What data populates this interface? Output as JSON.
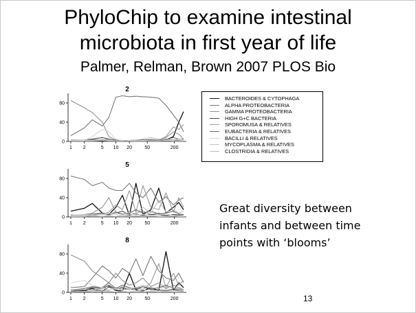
{
  "slide": {
    "title_lines": [
      "PhyloChip to examine intestinal",
      "microbiota in first year of life"
    ],
    "subtitle": "Palmer, Relman, Brown 2007 PLOS Bio",
    "comment_lines": [
      "Great diversity between",
      "infants and between time",
      "points with ‘blooms’"
    ],
    "page_number": "13"
  },
  "chart_data": [
    {
      "type": "line",
      "title": "2",
      "x": [
        1,
        2,
        3,
        5,
        7,
        10,
        14,
        20,
        28,
        40,
        60,
        90,
        130,
        190,
        250,
        320
      ],
      "xticks": [
        1,
        2,
        5,
        10,
        20,
        50,
        200
      ],
      "yticks": [
        0,
        40,
        80
      ],
      "xlog": true,
      "ylim": [
        0,
        100
      ],
      "series": [
        {
          "name": "BACTEROIDES & CYTOPHAGA",
          "values": [
            2,
            2,
            1,
            1,
            1,
            1,
            1,
            1,
            1,
            1,
            1,
            2,
            3,
            10,
            40,
            62
          ]
        },
        {
          "name": "ALPHA PROTEOBACTERIA",
          "values": [
            12,
            28,
            45,
            32,
            50,
            92,
            95,
            93,
            94,
            93,
            92,
            90,
            75,
            55,
            40,
            20
          ]
        },
        {
          "name": "GAMMA PROTEOBACTERIA",
          "values": [
            85,
            70,
            60,
            40,
            10,
            3,
            2,
            2,
            3,
            3,
            4,
            3,
            8,
            20,
            15,
            5
          ]
        },
        {
          "name": "HIGH G+C BACTERIA",
          "values": [
            2,
            3,
            5,
            8,
            5,
            2,
            1,
            1,
            2,
            3,
            2,
            3,
            5,
            3,
            2,
            1
          ]
        },
        {
          "name": "SPOROMUSA & RELATIVES",
          "values": [
            1,
            1,
            2,
            3,
            2,
            1,
            1,
            2,
            1,
            1,
            2,
            3,
            10,
            30,
            25,
            35
          ]
        },
        {
          "name": "EUBACTERIA & RELATIVES",
          "values": [
            3,
            2,
            4,
            3,
            5,
            2,
            2,
            1,
            2,
            2,
            3,
            2,
            4,
            8,
            5,
            4
          ]
        },
        {
          "name": "BACILLI & RELATIVES",
          "values": [
            1,
            2,
            10,
            25,
            20,
            5,
            2,
            1,
            1,
            2,
            1,
            1,
            2,
            1,
            1,
            1
          ]
        },
        {
          "name": "MYCOPLASMA & RELATIVES",
          "values": [
            1,
            1,
            1,
            2,
            1,
            1,
            1,
            2,
            1,
            1,
            1,
            1,
            2,
            1,
            1,
            1
          ]
        },
        {
          "name": "CLOSTRIDIA & RELATIVES",
          "values": [
            2,
            3,
            2,
            4,
            3,
            1,
            2,
            2,
            3,
            5,
            8,
            5,
            4,
            3,
            5,
            3
          ]
        }
      ]
    },
    {
      "type": "line",
      "title": "5",
      "x": [
        1,
        2,
        3,
        5,
        7,
        10,
        14,
        20,
        28,
        40,
        60,
        90,
        130,
        190,
        250,
        320
      ],
      "xticks": [
        1,
        2,
        5,
        10,
        20,
        50,
        200
      ],
      "yticks": [
        0,
        40,
        80
      ],
      "xlog": true,
      "ylim": [
        0,
        100
      ],
      "series": [
        {
          "name": "BACTEROIDES & CYTOPHAGA",
          "values": [
            12,
            18,
            28,
            8,
            5,
            20,
            45,
            3,
            70,
            5,
            15,
            60,
            8,
            20,
            30,
            15
          ]
        },
        {
          "name": "ALPHA PROTEOBACTERIA",
          "values": [
            85,
            78,
            65,
            72,
            60,
            55,
            55,
            70,
            50,
            40,
            60,
            30,
            42,
            25,
            35,
            40
          ]
        },
        {
          "name": "GAMMA PROTEOBACTERIA",
          "values": [
            3,
            5,
            8,
            20,
            40,
            10,
            5,
            3,
            8,
            12,
            5,
            8,
            3,
            5,
            2,
            4
          ]
        },
        {
          "name": "HIGH G+C BACTERIA",
          "values": [
            2,
            3,
            5,
            6,
            4,
            8,
            12,
            4,
            6,
            3,
            5,
            4,
            3,
            5,
            4,
            3
          ]
        },
        {
          "name": "SPOROMUSA & RELATIVES",
          "values": [
            1,
            2,
            3,
            5,
            10,
            25,
            15,
            55,
            10,
            65,
            20,
            15,
            50,
            10,
            40,
            20
          ]
        },
        {
          "name": "EUBACTERIA & RELATIVES",
          "values": [
            4,
            3,
            6,
            8,
            5,
            10,
            6,
            8,
            15,
            8,
            12,
            6,
            8,
            12,
            6,
            5
          ]
        },
        {
          "name": "BACILLI & RELATIVES",
          "values": [
            2,
            3,
            5,
            4,
            8,
            5,
            3,
            6,
            4,
            5,
            3,
            4,
            6,
            3,
            2,
            3
          ]
        },
        {
          "name": "MYCOPLASMA & RELATIVES",
          "values": [
            1,
            1,
            2,
            1,
            2,
            1,
            3,
            1,
            2,
            1,
            2,
            1,
            1,
            2,
            1,
            1
          ]
        },
        {
          "name": "CLOSTRIDIA & RELATIVES",
          "values": [
            3,
            5,
            4,
            6,
            3,
            8,
            5,
            10,
            6,
            20,
            8,
            35,
            10,
            15,
            8,
            12
          ]
        }
      ]
    },
    {
      "type": "line",
      "title": "8",
      "x": [
        1,
        2,
        3,
        5,
        7,
        10,
        14,
        20,
        28,
        40,
        60,
        90,
        130,
        190,
        250,
        320
      ],
      "xticks": [
        1,
        2,
        5,
        10,
        20,
        50,
        200
      ],
      "yticks": [
        0,
        40,
        80
      ],
      "xlog": true,
      "ylim": [
        0,
        100
      ],
      "series": [
        {
          "name": "BACTEROIDES & CYTOPHAGA",
          "values": [
            5,
            3,
            8,
            2,
            12,
            4,
            3,
            40,
            5,
            3,
            10,
            4,
            85,
            5,
            20,
            10
          ]
        },
        {
          "name": "ALPHA PROTEOBACTERIA",
          "values": [
            10,
            12,
            30,
            55,
            45,
            30,
            50,
            40,
            70,
            35,
            75,
            45,
            30,
            25,
            40,
            20
          ]
        },
        {
          "name": "GAMMA PROTEOBACTERIA",
          "values": [
            78,
            65,
            45,
            30,
            20,
            40,
            25,
            15,
            20,
            30,
            12,
            20,
            8,
            15,
            10,
            6
          ]
        },
        {
          "name": "HIGH G+C BACTERIA",
          "values": [
            2,
            5,
            10,
            8,
            15,
            6,
            10,
            5,
            8,
            12,
            6,
            5,
            4,
            6,
            3,
            2
          ]
        },
        {
          "name": "SPOROMUSA & RELATIVES",
          "values": [
            1,
            2,
            3,
            5,
            4,
            10,
            5,
            8,
            10,
            6,
            20,
            60,
            10,
            40,
            15,
            25
          ]
        },
        {
          "name": "EUBACTERIA & RELATIVES",
          "values": [
            5,
            8,
            12,
            10,
            20,
            8,
            15,
            10,
            6,
            12,
            8,
            10,
            15,
            8,
            6,
            5
          ]
        },
        {
          "name": "BACILLI & RELATIVES",
          "values": [
            20,
            25,
            15,
            10,
            5,
            8,
            4,
            6,
            3,
            5,
            4,
            3,
            2,
            3,
            2,
            1
          ]
        },
        {
          "name": "MYCOPLASMA & RELATIVES",
          "values": [
            1,
            2,
            1,
            3,
            2,
            1,
            2,
            1,
            3,
            1,
            2,
            1,
            2,
            1,
            1,
            1
          ]
        },
        {
          "name": "CLOSTRIDIA & RELATIVES",
          "values": [
            4,
            6,
            5,
            8,
            10,
            6,
            12,
            8,
            10,
            15,
            10,
            8,
            12,
            10,
            8,
            6
          ]
        }
      ]
    }
  ],
  "legend": {
    "placement": "right",
    "colors": [
      "#111111",
      "#777777",
      "#909090",
      "#444444",
      "#9a9a9a",
      "#6a6a6a",
      "#d8d8d8",
      "#c4c4c4",
      "#bdbdbd"
    ],
    "items": [
      "BACTEROIDES & CYTOPHAGA",
      "ALPHA PROTEOBACTERIA",
      "GAMMA PROTEOBACTERIA",
      "HIGH G+C BACTERIA",
      "SPOROMUSA & RELATIVES",
      "EUBACTERIA & RELATIVES",
      "BACILLI & RELATIVES",
      "MYCOPLASMA & RELATIVES",
      "CLOSTRIDIA & RELATIVES"
    ]
  }
}
